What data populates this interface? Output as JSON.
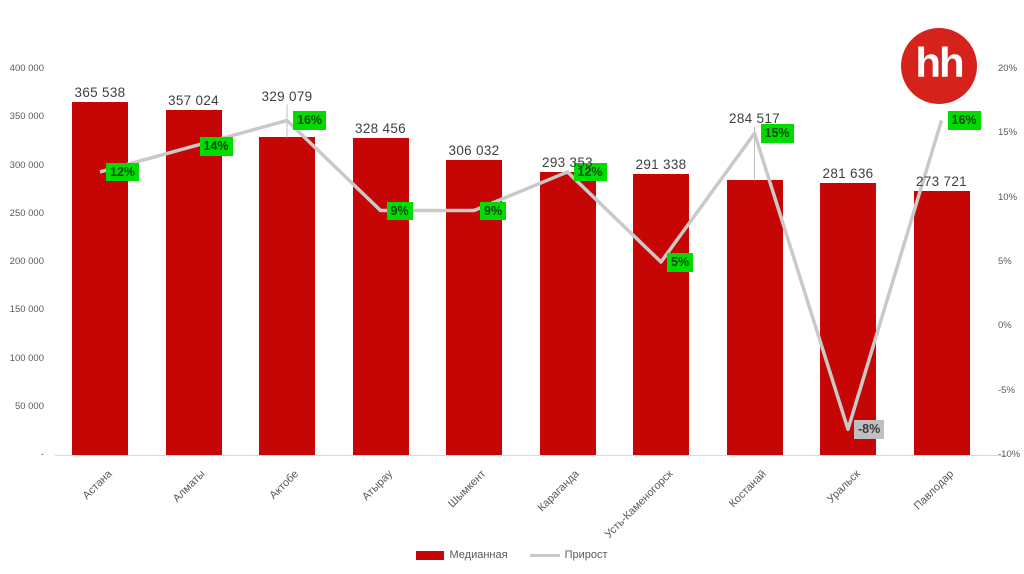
{
  "logo": {
    "text": "hh",
    "color": "#d5231c"
  },
  "chart_data": {
    "type": "bar+line combo",
    "title": "",
    "categories": [
      "Астана",
      "Алматы",
      "Актобе",
      "Атырау",
      "Шымкент",
      "Караганда",
      "Усть-Каменогорск",
      "Костанай",
      "Уральск",
      "Павлодар"
    ],
    "series": [
      {
        "name": "Медианная",
        "type": "bar",
        "color": "#c60505",
        "axis": "left",
        "values": [
          365538,
          357024,
          329079,
          328456,
          306032,
          293353,
          291338,
          284517,
          281636,
          273721
        ],
        "labels": [
          "365 538",
          "357 024",
          "329 079",
          "328 456",
          "306 032",
          "293 353",
          "291 338",
          "284 517",
          "281 636",
          "273 721"
        ]
      },
      {
        "name": "Прирост",
        "type": "line",
        "color": "#c9c9c9",
        "axis": "right",
        "values": [
          12,
          14,
          16,
          9,
          9,
          12,
          5,
          15,
          -8,
          16
        ],
        "labels": [
          "12%",
          "14%",
          "16%",
          "9%",
          "9%",
          "12%",
          "5%",
          "15%",
          "-8%",
          "16%"
        ]
      }
    ],
    "callout_lifts": [
      0,
      0,
      31,
      0,
      0,
      0,
      0,
      52,
      0,
      0
    ],
    "y_left": {
      "min": 0,
      "max": 400000,
      "step": 50000,
      "ticks_top_to_bottom": [
        "400 000",
        "350 000",
        "300 000",
        "250 000",
        "200 000",
        "150 000",
        "100 000",
        "50 000",
        "-"
      ]
    },
    "y_right": {
      "min": -10,
      "max": 20,
      "step": 5,
      "ticks_top_to_bottom": [
        "20%",
        "15%",
        "10%",
        "5%",
        "0%",
        "-5%",
        "-10%"
      ]
    },
    "badge_colors": {
      "positive_bg": "#00dc00",
      "positive_text": "#0b4809",
      "negative_bg": "#bfbfbf",
      "negative_text": "#3a3a3a"
    },
    "grid": "off",
    "legend_position": "bottom-center",
    "legend": [
      {
        "label": "Медианная"
      },
      {
        "label": "Прирост"
      }
    ]
  }
}
